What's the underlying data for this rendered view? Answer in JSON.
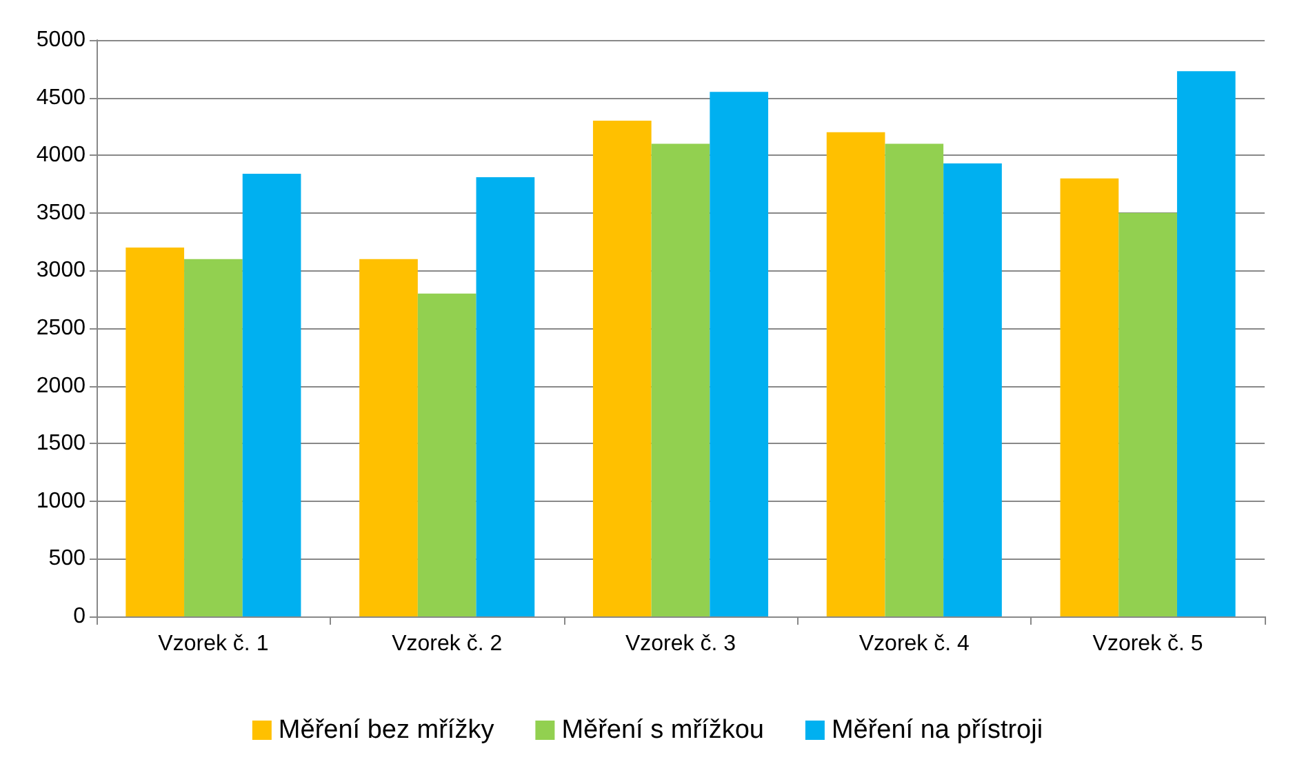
{
  "chart_data": {
    "type": "bar",
    "categories": [
      "Vzorek č. 1",
      "Vzorek č. 2",
      "Vzorek č. 3",
      "Vzorek č. 4",
      "Vzorek č. 5"
    ],
    "series": [
      {
        "name": "Měření bez mřížky",
        "color": "#ffc000",
        "values": [
          3200,
          3100,
          4300,
          4200,
          3800
        ]
      },
      {
        "name": "Měření s mřížkou",
        "color": "#92d050",
        "values": [
          3100,
          2800,
          4100,
          4100,
          3500
        ]
      },
      {
        "name": "Měření na přístroji",
        "color": "#00b0f0",
        "values": [
          3840,
          3810,
          4550,
          3930,
          4730
        ]
      }
    ],
    "ylim": [
      0,
      5000
    ],
    "yticks": [
      0,
      500,
      1000,
      1500,
      2000,
      2500,
      3000,
      3500,
      4000,
      4500,
      5000
    ],
    "grid": "y",
    "legend": "bottom"
  }
}
